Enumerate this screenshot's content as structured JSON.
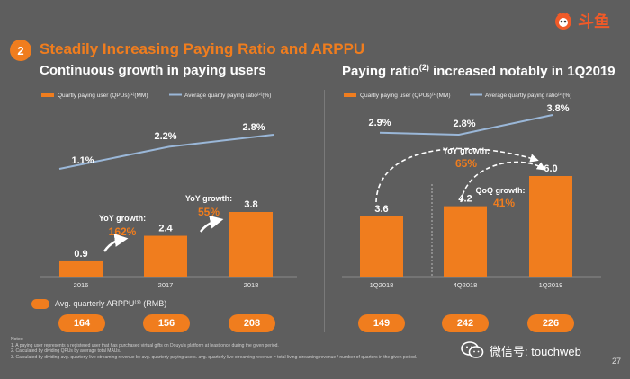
{
  "header": {
    "section_number": "2",
    "title": "Steadily Increasing Paying Ratio and ARPPU",
    "logo_text": "斗鱼"
  },
  "left_panel": {
    "title": "Continuous growth in paying users"
  },
  "right_panel": {
    "title_prefix": "Paying ratio",
    "title_sup": "(2)",
    "title_suffix": " increased notably in 1Q2019"
  },
  "arppu": {
    "legend": "Avg. quarterly ARPPU⁽³⁾ (RMB)",
    "left_values": [
      "164",
      "156",
      "208"
    ],
    "right_values": [
      "149",
      "242",
      "226"
    ]
  },
  "notes": {
    "title": "Notes:",
    "lines": [
      "1. A paying user represents a registered user that has purchased virtual gifts on Douyu's platform at least once during the given period.",
      "2. Calculated by dividing QPUs by average total MAUs.",
      "3. Calculated by dividing avg. quarterly live streaming revenue by avg. quarterly paying users. avg. quarterly live streaming revenue = total living streaming revenue / number of quarters in the given period."
    ]
  },
  "watermark": "微信号: touchweb",
  "page_number": "27",
  "colors": {
    "orange": "#f07d1e",
    "line": "#9ab7d8",
    "background": "#5e5e5e"
  },
  "chart_data": [
    {
      "type": "bar",
      "title": "Continuous growth in paying users",
      "categories": [
        "2016",
        "2017",
        "2018"
      ],
      "series": [
        {
          "name": "Quartly paying user (QPUs)(1)(MM)",
          "kind": "bar",
          "values": [
            0.9,
            2.4,
            3.8
          ],
          "labels": [
            "0.9",
            "2.4",
            "3.8"
          ]
        },
        {
          "name": "Average quartly paying ratio(2)(%)",
          "kind": "line",
          "values": [
            1.1,
            2.2,
            2.8
          ],
          "labels": [
            "1.1%",
            "2.2%",
            "2.8%"
          ]
        }
      ],
      "legend": [
        "Quartly paying user (QPUs)",
        "(1)",
        "(MM)",
        "Average quartly paying ratio",
        "(2)",
        "(%)"
      ],
      "annotations": [
        {
          "title": "YoY growth:",
          "value": "162%"
        },
        {
          "title": "YoY growth:",
          "value": "55%"
        }
      ],
      "ylim": [
        0,
        4.5
      ]
    },
    {
      "type": "bar",
      "title": "Paying ratio(2) increased notably in 1Q2019",
      "categories": [
        "1Q2018",
        "4Q2018",
        "1Q2019"
      ],
      "series": [
        {
          "name": "Quartly paying user (QPUs)(1)(MM)",
          "kind": "bar",
          "values": [
            3.6,
            4.2,
            6.0
          ],
          "labels": [
            "3.6",
            "4.2",
            "6.0"
          ]
        },
        {
          "name": "Average quartly paying ratio(2)(%)",
          "kind": "line",
          "values": [
            2.9,
            2.8,
            3.8
          ],
          "labels": [
            "2.9%",
            "2.8%",
            "3.8%"
          ]
        }
      ],
      "legend": [
        "Quartly paying user (QPUs)",
        "(1)",
        "(MM)",
        "Average quartly paying ratio",
        "(2)",
        "(%)"
      ],
      "annotations": [
        {
          "title": "YoY growth:",
          "value": "65%"
        },
        {
          "title": "QoQ growth:",
          "value": "41%"
        }
      ],
      "ylim": [
        0,
        7.1
      ]
    }
  ]
}
